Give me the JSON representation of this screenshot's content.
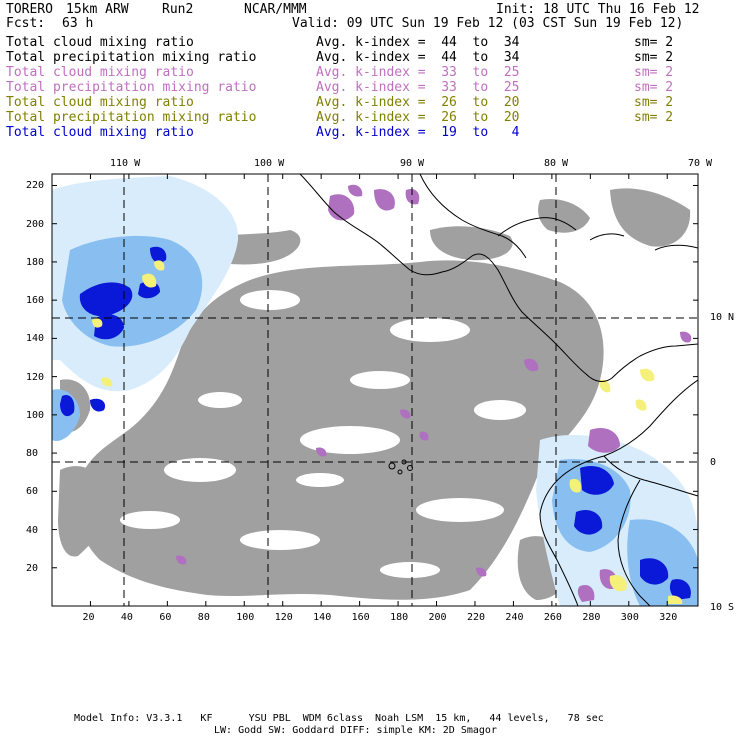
{
  "header": {
    "model": "TORERO",
    "resolution": "15km ARW",
    "run": "Run2",
    "org": "NCAR/MMM",
    "init": "Init: 18 UTC Thu 16 Feb 12",
    "fcst_label": "Fcst:",
    "fcst_value": "63 h",
    "valid": "Valid: 09 UTC Sun 19 Feb 12 (03 CST Sun 19 Feb 12)"
  },
  "legend": [
    {
      "field": "Total cloud mixing ratio",
      "kindex": "Avg. k-index =  44  to  34",
      "sm": "sm= 2",
      "color": "#000000"
    },
    {
      "field": "Total precipitation mixing ratio",
      "kindex": "Avg. k-index =  44  to  34",
      "sm": "sm= 2",
      "color": "#000000"
    },
    {
      "field": "Total cloud mixing ratio",
      "kindex": "Avg. k-index =  33  to  25",
      "sm": "sm= 2",
      "color": "#c070c0"
    },
    {
      "field": "Total precipitation mixing ratio",
      "kindex": "Avg. k-index =  33  to  25",
      "sm": "sm= 2",
      "color": "#c070c0"
    },
    {
      "field": "Total cloud mixing ratio",
      "kindex": "Avg. k-index =  26  to  20",
      "sm": "sm= 2",
      "color": "#808000"
    },
    {
      "field": "Total precipitation mixing ratio",
      "kindex": "Avg. k-index =  26  to  20",
      "sm": "sm= 2",
      "color": "#808000"
    },
    {
      "field": "Total cloud mixing ratio",
      "kindex": "Avg. k-index =  19  to   4",
      "sm": "",
      "color": "#0000cc"
    }
  ],
  "map": {
    "lon_labels": [
      "110 W",
      "100 W",
      "90 W",
      "80 W",
      "70 W"
    ],
    "lat_labels": [
      "10 N",
      "0",
      "10 S"
    ],
    "x_ticks": [
      "20",
      "40",
      "60",
      "80",
      "100",
      "120",
      "140",
      "160",
      "180",
      "200",
      "220",
      "240",
      "260",
      "280",
      "300",
      "320"
    ],
    "y_ticks": [
      "220",
      "200",
      "180",
      "160",
      "140",
      "120",
      "100",
      "80",
      "60",
      "40",
      "20"
    ],
    "colors": {
      "grid_cloud": "#a0a0a0",
      "light_cloud": "#d8ecfb",
      "mid_cloud": "#88bff0",
      "dense_cloud": "#0a18d8",
      "purple": "#b070c0",
      "yellow": "#f4f07a",
      "coast": "#000000"
    }
  },
  "footer": {
    "line1": "Model Info: V3.3.1   KF      YSU PBL  WDM 6class  Noah LSM  15 km,   44 levels,   78 sec",
    "line2": "LW: Godd SW: Goddard DIFF: simple KM: 2D Smagor"
  }
}
